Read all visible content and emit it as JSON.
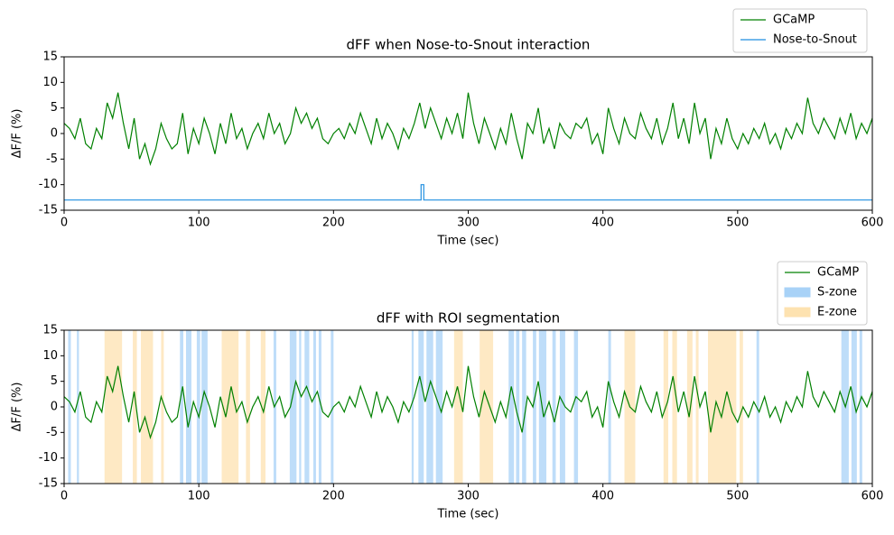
{
  "chart_data": [
    {
      "type": "line",
      "title": "dFF when Nose-to-Snout interaction",
      "xlabel": "Time (sec)",
      "ylabel": "ΔF/F (%)",
      "xlim": [
        0,
        600
      ],
      "ylim": [
        -15,
        15
      ],
      "xticks": [
        0,
        100,
        200,
        300,
        400,
        500,
        600
      ],
      "yticks": [
        -15,
        -10,
        -5,
        0,
        5,
        10,
        15
      ],
      "legend": "upper right",
      "series": [
        {
          "name": "GCaMP",
          "color": "#008000",
          "x": [
            0,
            4,
            8,
            12,
            16,
            20,
            24,
            28,
            32,
            36,
            40,
            44,
            48,
            52,
            56,
            60,
            64,
            68,
            72,
            76,
            80,
            84,
            88,
            92,
            96,
            100,
            104,
            108,
            112,
            116,
            120,
            124,
            128,
            132,
            136,
            140,
            144,
            148,
            152,
            156,
            160,
            164,
            168,
            172,
            176,
            180,
            184,
            188,
            192,
            196,
            200,
            204,
            208,
            212,
            216,
            220,
            224,
            228,
            232,
            236,
            240,
            244,
            248,
            252,
            256,
            260,
            264,
            268,
            272,
            276,
            280,
            284,
            288,
            292,
            296,
            300,
            304,
            308,
            312,
            316,
            320,
            324,
            328,
            332,
            336,
            340,
            344,
            348,
            352,
            356,
            360,
            364,
            368,
            372,
            376,
            380,
            384,
            388,
            392,
            396,
            400,
            404,
            408,
            412,
            416,
            420,
            424,
            428,
            432,
            436,
            440,
            444,
            448,
            452,
            456,
            460,
            464,
            468,
            472,
            476,
            480,
            484,
            488,
            492,
            496,
            500,
            504,
            508,
            512,
            516,
            520,
            524,
            528,
            532,
            536,
            540,
            544,
            548,
            552,
            556,
            560,
            564,
            568,
            572,
            576,
            580,
            584,
            588,
            592,
            596,
            600
          ],
          "values": [
            2,
            1,
            -1,
            3,
            -2,
            -3,
            1,
            -1,
            6,
            3,
            8,
            2,
            -3,
            3,
            -5,
            -2,
            -6,
            -3,
            2,
            -1,
            -3,
            -2,
            4,
            -4,
            1,
            -2,
            3,
            0,
            -4,
            2,
            -2,
            4,
            -1,
            1,
            -3,
            0,
            2,
            -1,
            4,
            0,
            2,
            -2,
            0,
            5,
            2,
            4,
            1,
            3,
            -1,
            -2,
            0,
            1,
            -1,
            2,
            0,
            4,
            1,
            -2,
            3,
            -1,
            2,
            0,
            -3,
            1,
            -1,
            2,
            6,
            1,
            5,
            2,
            -1,
            3,
            0,
            4,
            -1,
            8,
            2,
            -2,
            3,
            0,
            -3,
            1,
            -2,
            4,
            -1,
            -5,
            2,
            0,
            5,
            -2,
            1,
            -3,
            2,
            0,
            -1,
            2,
            1,
            3,
            -2,
            0,
            -4,
            5,
            1,
            -2,
            3,
            0,
            -1,
            4,
            1,
            -1,
            3,
            -2,
            1,
            6,
            -1,
            3,
            -2,
            6,
            0,
            3,
            -5,
            1,
            -2,
            3,
            -1,
            -3,
            0,
            -2,
            1,
            -1,
            2,
            -2,
            0,
            -3,
            1,
            -1,
            2,
            0,
            7,
            2,
            0,
            3,
            1,
            -1,
            3,
            0,
            4,
            -1,
            2,
            0,
            3
          ]
        },
        {
          "name": "Nose-to-Snout",
          "color": "#1f8ee0",
          "x": [
            0,
            265,
            265,
            267,
            267,
            600
          ],
          "values": [
            -13,
            -13,
            -10,
            -10,
            -13,
            -13
          ]
        }
      ]
    },
    {
      "type": "line",
      "title": "dFF with ROI segmentation",
      "xlabel": "Time (sec)",
      "ylabel": "ΔF/F (%)",
      "xlim": [
        0,
        600
      ],
      "ylim": [
        -15,
        15
      ],
      "xticks": [
        0,
        100,
        200,
        300,
        400,
        500,
        600
      ],
      "yticks": [
        -15,
        -10,
        -5,
        0,
        5,
        10,
        15
      ],
      "legend": "upper right",
      "series": [
        {
          "name": "GCaMP",
          "color": "#008000",
          "x": [
            0,
            4,
            8,
            12,
            16,
            20,
            24,
            28,
            32,
            36,
            40,
            44,
            48,
            52,
            56,
            60,
            64,
            68,
            72,
            76,
            80,
            84,
            88,
            92,
            96,
            100,
            104,
            108,
            112,
            116,
            120,
            124,
            128,
            132,
            136,
            140,
            144,
            148,
            152,
            156,
            160,
            164,
            168,
            172,
            176,
            180,
            184,
            188,
            192,
            196,
            200,
            204,
            208,
            212,
            216,
            220,
            224,
            228,
            232,
            236,
            240,
            244,
            248,
            252,
            256,
            260,
            264,
            268,
            272,
            276,
            280,
            284,
            288,
            292,
            296,
            300,
            304,
            308,
            312,
            316,
            320,
            324,
            328,
            332,
            336,
            340,
            344,
            348,
            352,
            356,
            360,
            364,
            368,
            372,
            376,
            380,
            384,
            388,
            392,
            396,
            400,
            404,
            408,
            412,
            416,
            420,
            424,
            428,
            432,
            436,
            440,
            444,
            448,
            452,
            456,
            460,
            464,
            468,
            472,
            476,
            480,
            484,
            488,
            492,
            496,
            500,
            504,
            508,
            512,
            516,
            520,
            524,
            528,
            532,
            536,
            540,
            544,
            548,
            552,
            556,
            560,
            564,
            568,
            572,
            576,
            580,
            584,
            588,
            592,
            596,
            600
          ],
          "values": [
            2,
            1,
            -1,
            3,
            -2,
            -3,
            1,
            -1,
            6,
            3,
            8,
            2,
            -3,
            3,
            -5,
            -2,
            -6,
            -3,
            2,
            -1,
            -3,
            -2,
            4,
            -4,
            1,
            -2,
            3,
            0,
            -4,
            2,
            -2,
            4,
            -1,
            1,
            -3,
            0,
            2,
            -1,
            4,
            0,
            2,
            -2,
            0,
            5,
            2,
            4,
            1,
            3,
            -1,
            -2,
            0,
            1,
            -1,
            2,
            0,
            4,
            1,
            -2,
            3,
            -1,
            2,
            0,
            -3,
            1,
            -1,
            2,
            6,
            1,
            5,
            2,
            -1,
            3,
            0,
            4,
            -1,
            8,
            2,
            -2,
            3,
            0,
            -3,
            1,
            -2,
            4,
            -1,
            -5,
            2,
            0,
            5,
            -2,
            1,
            -3,
            2,
            0,
            -1,
            2,
            1,
            3,
            -2,
            0,
            -4,
            5,
            1,
            -2,
            3,
            0,
            -1,
            4,
            1,
            -1,
            3,
            -2,
            1,
            6,
            -1,
            3,
            -2,
            6,
            0,
            3,
            -5,
            1,
            -2,
            3,
            -1,
            -3,
            0,
            -2,
            1,
            -1,
            2,
            -2,
            0,
            -3,
            1,
            -1,
            2,
            0,
            7,
            2,
            0,
            3,
            1,
            -1,
            3,
            0,
            4,
            -1,
            2,
            0,
            3
          ]
        },
        {
          "name": "S-zone",
          "color": "#a8d2f7",
          "spans": [
            [
              3,
              5
            ],
            [
              9.5,
              11
            ],
            [
              86,
              88.5
            ],
            [
              90.5,
              94.5
            ],
            [
              98.5,
              101
            ],
            [
              102,
              106.5
            ],
            [
              155.5,
              157.5
            ],
            [
              167.5,
              172.5
            ],
            [
              174.5,
              176
            ],
            [
              178.5,
              182
            ],
            [
              185,
              187
            ],
            [
              189,
              191
            ],
            [
              198,
              200
            ],
            [
              258,
              259.5
            ],
            [
              263,
              267
            ],
            [
              269,
              274
            ],
            [
              276,
              281
            ],
            [
              330,
              334
            ],
            [
              335.5,
              338
            ],
            [
              340,
              343
            ],
            [
              348,
              350.5
            ],
            [
              352.5,
              358
            ],
            [
              362.5,
              365
            ],
            [
              368,
              372
            ],
            [
              378.5,
              381.5
            ],
            [
              404,
              406
            ],
            [
              514,
              516
            ],
            [
              577,
              582.5
            ],
            [
              584.5,
              588.5
            ],
            [
              590.5,
              592.5
            ]
          ]
        },
        {
          "name": "E-zone",
          "color": "#fde2b0",
          "spans": [
            [
              30,
              43
            ],
            [
              51,
              54
            ],
            [
              57,
              66
            ],
            [
              72,
              74
            ],
            [
              117,
              129.5
            ],
            [
              135,
              138
            ],
            [
              146,
              149.5
            ],
            [
              289.5,
              296
            ],
            [
              308.5,
              318.5
            ],
            [
              416,
              424
            ],
            [
              445,
              448.5
            ],
            [
              451.5,
              455
            ],
            [
              462.5,
              466.5
            ],
            [
              469,
              471
            ],
            [
              478,
              499
            ],
            [
              501.5,
              504
            ]
          ]
        }
      ]
    }
  ]
}
